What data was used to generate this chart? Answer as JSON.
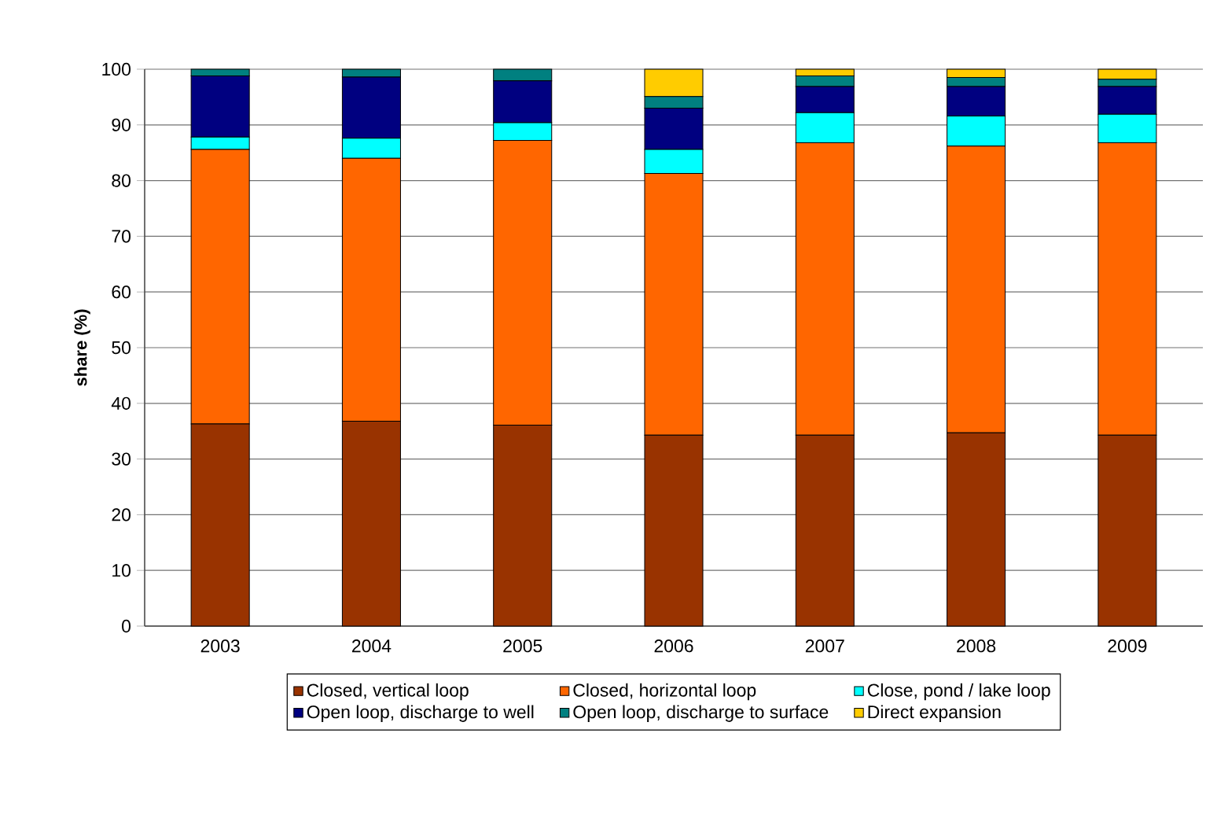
{
  "chart_data": {
    "type": "bar",
    "stacked": true,
    "ylabel": "share (%)",
    "categories": [
      "2003",
      "2004",
      "2005",
      "2006",
      "2007",
      "2008",
      "2009"
    ],
    "series": [
      {
        "name": "Closed, vertical loop",
        "color": "#993300",
        "values": [
          36.3,
          36.8,
          36.1,
          34.3,
          34.3,
          34.7,
          34.3
        ]
      },
      {
        "name": "Closed, horizontal loop",
        "color": "#ff6600",
        "values": [
          49.3,
          47.2,
          51.1,
          47.0,
          52.5,
          51.5,
          52.5
        ]
      },
      {
        "name": "Close, pond / lake loop",
        "color": "#00ffff",
        "values": [
          2.2,
          3.6,
          3.2,
          4.3,
          5.4,
          5.4,
          5.1
        ]
      },
      {
        "name": "Open loop, discharge to well",
        "color": "#000080",
        "values": [
          11.0,
          11.0,
          7.5,
          7.4,
          4.7,
          5.3,
          5.0
        ]
      },
      {
        "name": "Open loop, discharge to surface",
        "color": "#008080",
        "values": [
          1.2,
          1.4,
          2.1,
          2.1,
          1.9,
          1.6,
          1.3
        ]
      },
      {
        "name": "Direct expansion",
        "color": "#ffcc00",
        "values": [
          null,
          null,
          null,
          4.9,
          1.2,
          1.5,
          1.8
        ]
      }
    ],
    "ylim": [
      0,
      100
    ],
    "yticks": [
      0,
      10,
      20,
      30,
      40,
      50,
      60,
      70,
      80,
      90,
      100
    ],
    "grid": "y",
    "legend": "bottom"
  }
}
